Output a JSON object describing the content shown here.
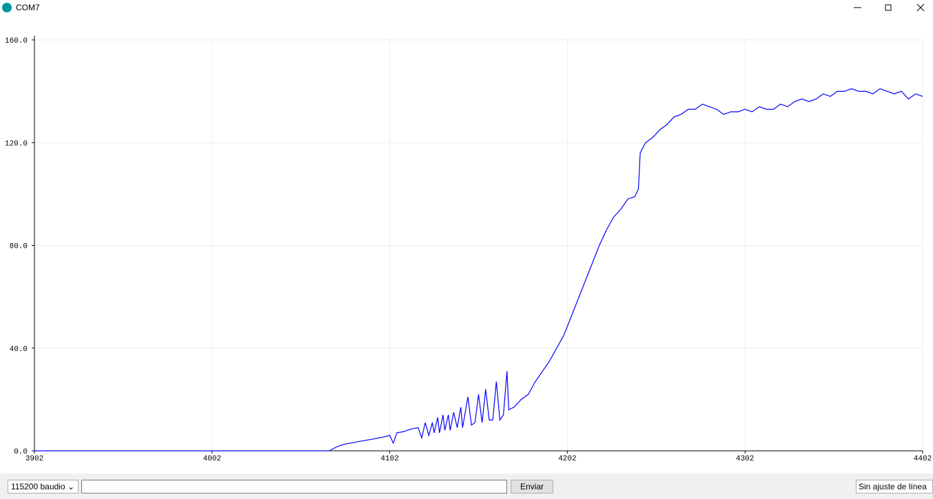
{
  "window": {
    "title": "COM7"
  },
  "chart_data": {
    "type": "line",
    "color": "#0000ff",
    "grid": true,
    "x": [
      3902,
      3950,
      4000,
      4050,
      4068,
      4072,
      4076,
      4080,
      4086,
      4092,
      4098,
      4102,
      4104,
      4106,
      4110,
      4114,
      4118,
      4120,
      4122,
      4124,
      4126,
      4127,
      4129,
      4130,
      4132,
      4133,
      4135,
      4136,
      4138,
      4140,
      4142,
      4143,
      4146,
      4148,
      4150,
      4152,
      4154,
      4156,
      4158,
      4160,
      4162,
      4164,
      4166,
      4168,
      4169,
      4172,
      4176,
      4180,
      4184,
      4188,
      4192,
      4196,
      4200,
      4204,
      4208,
      4212,
      4216,
      4220,
      4224,
      4228,
      4232,
      4236,
      4240,
      4242,
      4243,
      4246,
      4250,
      4254,
      4258,
      4262,
      4266,
      4270,
      4274,
      4278,
      4282,
      4286,
      4290,
      4294,
      4298,
      4302,
      4306,
      4310,
      4314,
      4318,
      4322,
      4326,
      4330,
      4334,
      4338,
      4342,
      4346,
      4350,
      4354,
      4358,
      4362,
      4366,
      4370,
      4374,
      4378,
      4382,
      4386,
      4390,
      4394,
      4398,
      4402
    ],
    "values": [
      0,
      0,
      0,
      0,
      0,
      1.5,
      2.5,
      3,
      3.8,
      4.5,
      5.3,
      6,
      3,
      7,
      7.5,
      8.5,
      9,
      5,
      11,
      6,
      11,
      7,
      13,
      7,
      14,
      8,
      14,
      8,
      15,
      9,
      17,
      9,
      21,
      10,
      11,
      22,
      11,
      24,
      12,
      12,
      27,
      12,
      14,
      31,
      16,
      17,
      20,
      22,
      27,
      31,
      35,
      40,
      45,
      52,
      59,
      66,
      73,
      80,
      86,
      91,
      94,
      98,
      99,
      102,
      116,
      120,
      122,
      125,
      127,
      130,
      131,
      133,
      133,
      135,
      134,
      133,
      131,
      132,
      132,
      133,
      132,
      134,
      133,
      133,
      135,
      134,
      136,
      137,
      136,
      137,
      139,
      138,
      140,
      140,
      141,
      140,
      140,
      139,
      141,
      140,
      139,
      140,
      137,
      139,
      138
    ],
    "xlim": [
      3902,
      4402
    ],
    "xticks": [
      3902,
      4002,
      4102,
      4202,
      4302,
      4402
    ],
    "ylim": [
      0,
      160
    ],
    "yticks": [
      {
        "value": 0,
        "label": "0.0"
      },
      {
        "value": 40,
        "label": "40.0"
      },
      {
        "value": 80,
        "label": "80.0"
      },
      {
        "value": 120,
        "label": "120.0"
      },
      {
        "value": 160,
        "label": "160.0"
      }
    ]
  },
  "toolbar": {
    "baud": "115200 baudio",
    "send": "Enviar",
    "line_ending": "Sin ajuste de línea"
  }
}
